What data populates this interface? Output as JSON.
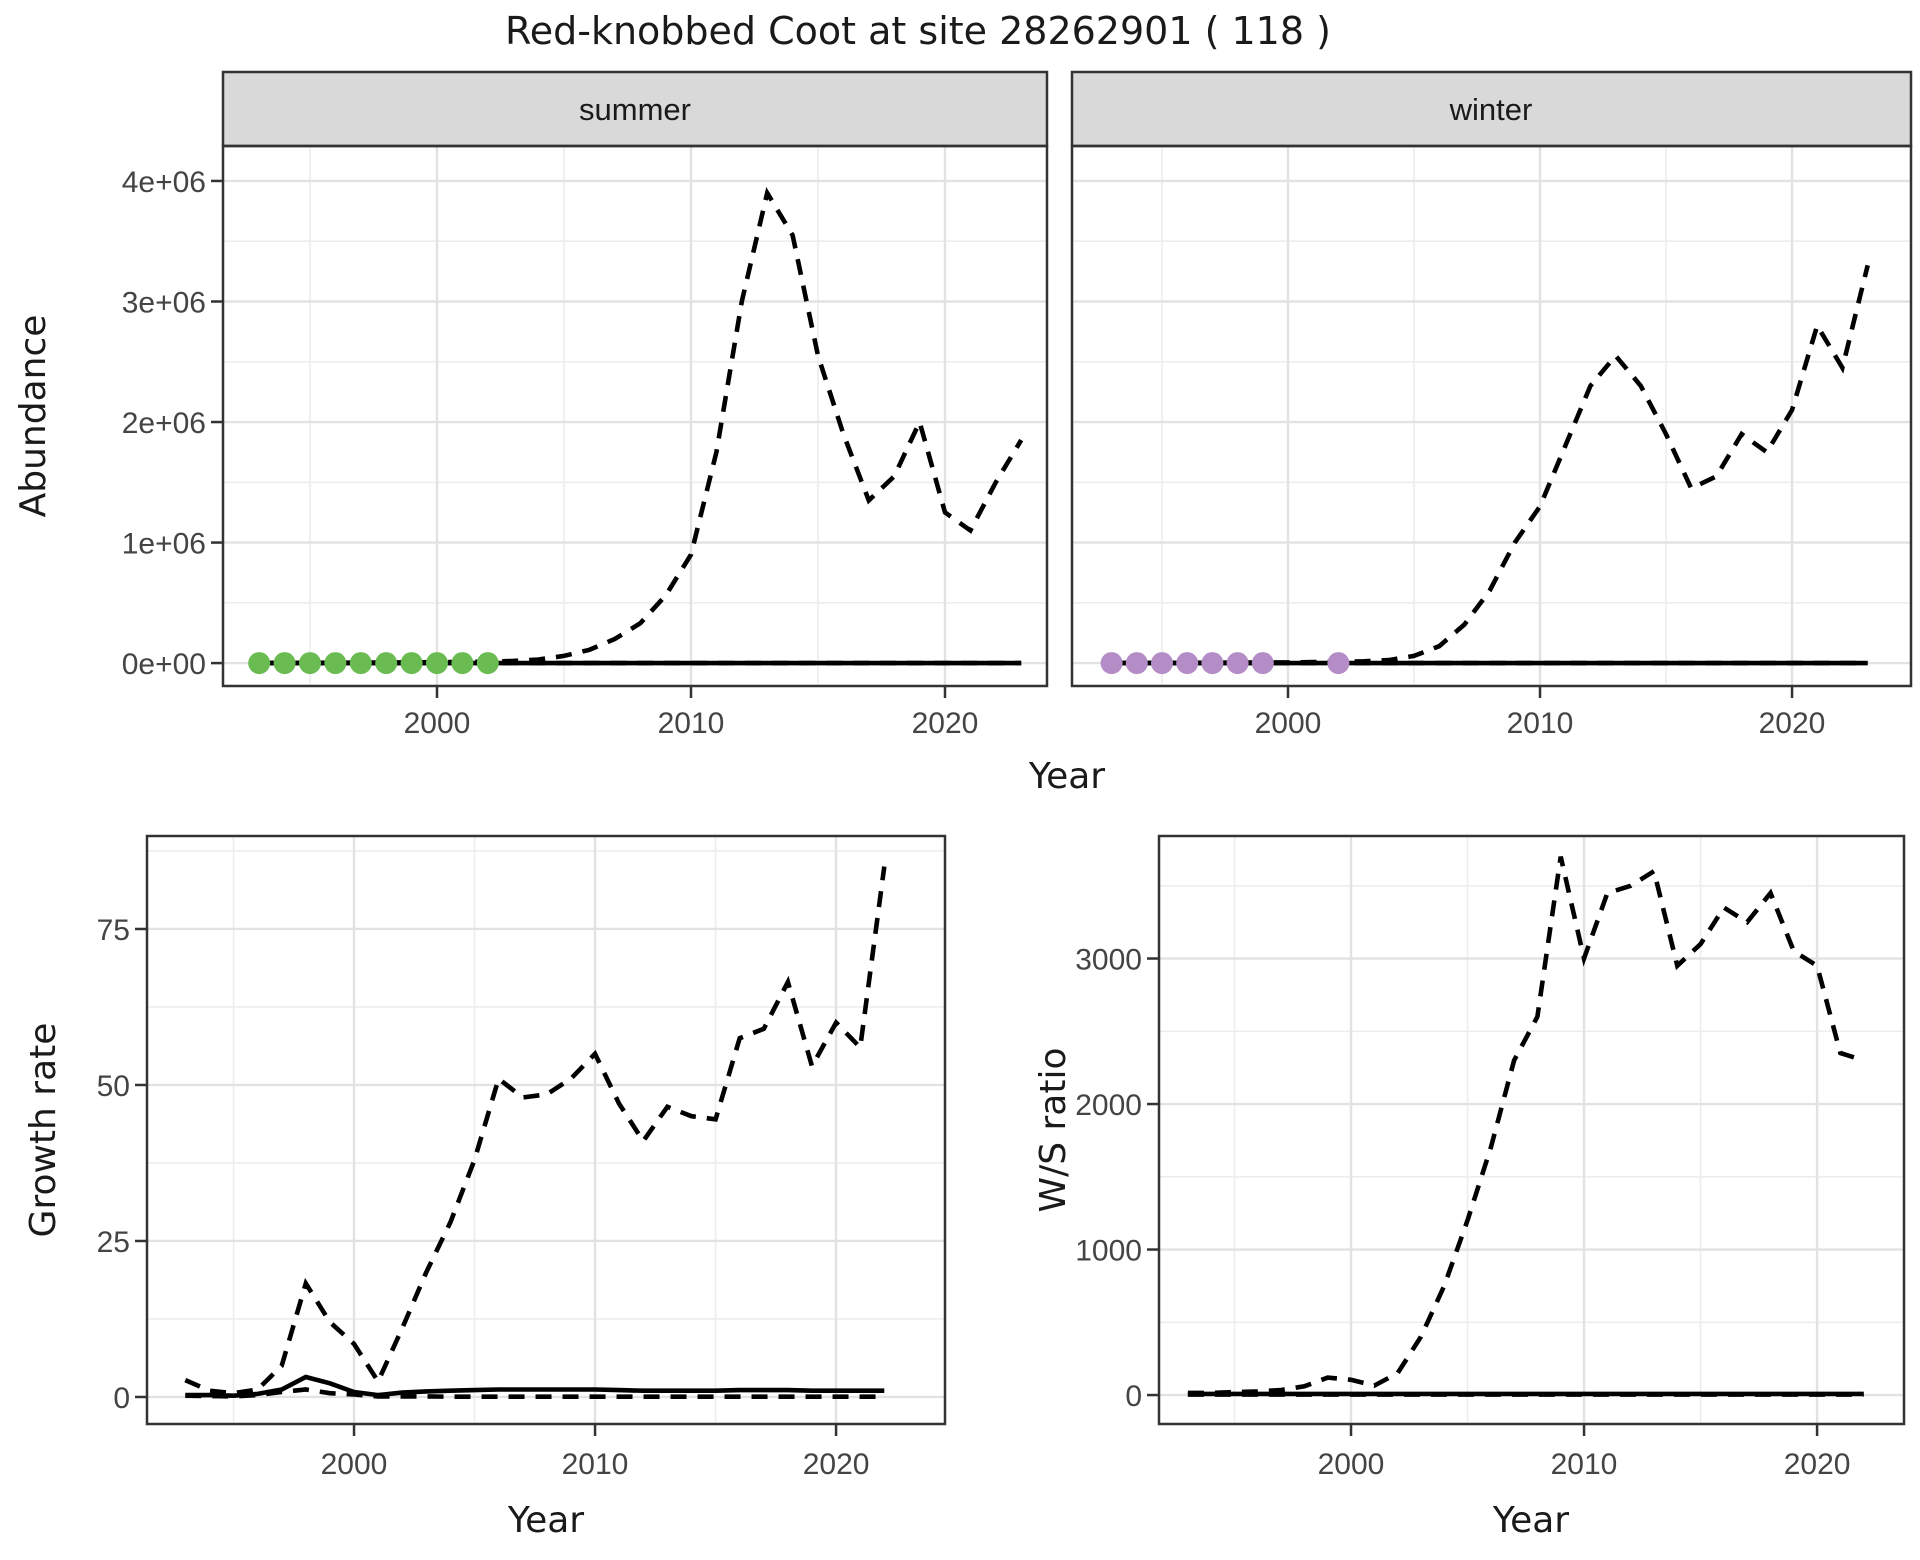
{
  "title": "Red-knobbed Coot at site 28262901 ( 118 )",
  "top_axis": {
    "ylabel": "Abundance",
    "xlabel": "Year"
  },
  "colors": {
    "summer_points": "#6ABC52",
    "winter_points": "#B48CC6",
    "line": "#000000",
    "grid_major": "#E2E2E2",
    "grid_minor": "#EDEDED",
    "panel_border": "#333333",
    "strip_fill": "#D9D9D9",
    "tick_text": "#444444"
  },
  "chart_data": [
    {
      "id": "abundance_summer",
      "type": "line",
      "facet_label": "summer",
      "ylabel": "Abundance",
      "xlabel": "Year",
      "xlim": [
        1991.575,
        2024.016
      ],
      "ylim": [
        -190000,
        4290000
      ],
      "xticks": [
        {
          "v": 2000,
          "label": "2000"
        },
        {
          "v": 2010,
          "label": "2010"
        },
        {
          "v": 2020,
          "label": "2020"
        }
      ],
      "yticks": [
        {
          "v": 0,
          "label": "0e+00"
        },
        {
          "v": 1000000,
          "label": "1e+06"
        },
        {
          "v": 2000000,
          "label": "2e+06"
        },
        {
          "v": 3000000,
          "label": "3e+06"
        },
        {
          "v": 4000000,
          "label": "4e+06"
        }
      ],
      "x_minor": [
        1995,
        2005,
        2015
      ],
      "y_minor": [
        500000,
        1500000,
        2500000,
        3500000
      ],
      "series": [
        {
          "name": "observed",
          "style": "solid",
          "x": [
            1993,
            1994,
            1995,
            1996,
            1997,
            1998,
            1999,
            2000,
            2001,
            2002,
            2003,
            2004,
            2005,
            2006,
            2007,
            2008,
            2009,
            2010,
            2011,
            2012,
            2013,
            2014,
            2015,
            2016,
            2017,
            2018,
            2019,
            2020,
            2021,
            2022,
            2023
          ],
          "y": [
            0,
            0,
            0,
            0,
            0,
            0,
            0,
            0,
            0,
            0,
            0,
            0,
            0,
            0,
            0,
            0,
            0,
            0,
            0,
            0,
            0,
            0,
            0,
            0,
            0,
            0,
            0,
            0,
            0,
            0,
            0
          ]
        },
        {
          "name": "model_lower",
          "style": "dashed",
          "x": [
            1993,
            1994,
            1995,
            1996,
            1997,
            1998,
            1999,
            2000,
            2001,
            2002,
            2003,
            2004,
            2005,
            2006,
            2007,
            2008,
            2009,
            2010,
            2011,
            2012,
            2013,
            2014,
            2015,
            2016,
            2017,
            2018,
            2019,
            2020,
            2021,
            2022,
            2023
          ],
          "y": [
            0,
            0,
            0,
            0,
            0,
            0,
            0,
            0,
            0,
            0,
            0,
            0,
            0,
            0,
            0,
            0,
            0,
            0,
            0,
            0,
            0,
            0,
            0,
            0,
            0,
            0,
            0,
            0,
            0,
            0,
            0
          ]
        },
        {
          "name": "model",
          "style": "dashed",
          "x": [
            1993,
            1994,
            1995,
            1996,
            1997,
            1998,
            1999,
            2000,
            2001,
            2002,
            2003,
            2004,
            2005,
            2006,
            2007,
            2008,
            2009,
            2010,
            2011,
            2012,
            2013,
            2014,
            2015,
            2016,
            2017,
            2018,
            2019,
            2020,
            2021,
            2022,
            2023
          ],
          "y": [
            2000,
            2000,
            2500,
            3000,
            4000,
            5000,
            6000,
            8000,
            9000,
            12000,
            18000,
            30000,
            60000,
            110000,
            200000,
            330000,
            560000,
            900000,
            1750000,
            3000000,
            3900000,
            3550000,
            2550000,
            1900000,
            1350000,
            1550000,
            2000000,
            1250000,
            1100000,
            1500000,
            1850000
          ]
        }
      ],
      "points": {
        "name": "observed_counts_summer",
        "color": "#6ABC52",
        "value": 0,
        "years": [
          1993,
          1994,
          1995,
          1996,
          1997,
          1998,
          1999,
          2000,
          2001,
          2002
        ]
      }
    },
    {
      "id": "abundance_winter",
      "type": "line",
      "facet_label": "winter",
      "ylabel": "Abundance",
      "xlabel": "Year",
      "xlim": [
        1991.43,
        2024.72
      ],
      "ylim": [
        -190000,
        4290000
      ],
      "xticks": [
        {
          "v": 2000,
          "label": "2000"
        },
        {
          "v": 2010,
          "label": "2010"
        },
        {
          "v": 2020,
          "label": "2020"
        }
      ],
      "yticks": [
        {
          "v": 0,
          "label": "0e+00"
        },
        {
          "v": 1000000,
          "label": "1e+06"
        },
        {
          "v": 2000000,
          "label": "2e+06"
        },
        {
          "v": 3000000,
          "label": "3e+06"
        },
        {
          "v": 4000000,
          "label": "4e+06"
        }
      ],
      "x_minor": [
        1995,
        2005,
        2015
      ],
      "y_minor": [
        500000,
        1500000,
        2500000,
        3500000
      ],
      "series": [
        {
          "name": "observed",
          "style": "solid",
          "x": [
            1993,
            1994,
            1995,
            1996,
            1997,
            1998,
            1999,
            2000,
            2001,
            2002,
            2003,
            2004,
            2005,
            2006,
            2007,
            2008,
            2009,
            2010,
            2011,
            2012,
            2013,
            2014,
            2015,
            2016,
            2017,
            2018,
            2019,
            2020,
            2021,
            2022,
            2023
          ],
          "y": [
            0,
            0,
            0,
            0,
            0,
            0,
            0,
            0,
            0,
            0,
            0,
            0,
            0,
            0,
            0,
            0,
            0,
            0,
            0,
            0,
            0,
            0,
            0,
            0,
            0,
            0,
            0,
            0,
            0,
            0,
            0
          ]
        },
        {
          "name": "model_lower",
          "style": "dashed",
          "x": [
            1993,
            1994,
            1995,
            1996,
            1997,
            1998,
            1999,
            2000,
            2001,
            2002,
            2003,
            2004,
            2005,
            2006,
            2007,
            2008,
            2009,
            2010,
            2011,
            2012,
            2013,
            2014,
            2015,
            2016,
            2017,
            2018,
            2019,
            2020,
            2021,
            2022,
            2023
          ],
          "y": [
            0,
            0,
            0,
            0,
            0,
            0,
            0,
            0,
            0,
            0,
            0,
            0,
            0,
            0,
            0,
            0,
            0,
            0,
            0,
            0,
            0,
            0,
            0,
            0,
            0,
            0,
            0,
            0,
            0,
            0,
            0
          ]
        },
        {
          "name": "model",
          "style": "dashed",
          "x": [
            1993,
            1994,
            1995,
            1996,
            1997,
            1998,
            1999,
            2000,
            2001,
            2002,
            2003,
            2004,
            2005,
            2006,
            2007,
            2008,
            2009,
            2010,
            2011,
            2012,
            2013,
            2014,
            2015,
            2016,
            2017,
            2018,
            2019,
            2020,
            2021,
            2022,
            2023
          ],
          "y": [
            1500,
            1500,
            2000,
            2500,
            3000,
            4000,
            5000,
            6000,
            8000,
            10000,
            15000,
            25000,
            60000,
            140000,
            320000,
            600000,
            1000000,
            1300000,
            1800000,
            2300000,
            2550000,
            2300000,
            1900000,
            1450000,
            1550000,
            1900000,
            1750000,
            2100000,
            2800000,
            2450000,
            3300000
          ]
        }
      ],
      "points": {
        "name": "observed_counts_winter",
        "color": "#B48CC6",
        "value": 0,
        "years": [
          1993,
          1994,
          1995,
          1996,
          1997,
          1998,
          1999,
          2002
        ]
      }
    },
    {
      "id": "growth_rate",
      "type": "line",
      "facet_label": "",
      "ylabel": "Growth rate",
      "xlabel": "Year",
      "xlim": [
        1991.41,
        2024.52
      ],
      "ylim": [
        -4.33,
        89.9
      ],
      "xticks": [
        {
          "v": 2000,
          "label": "2000"
        },
        {
          "v": 2010,
          "label": "2010"
        },
        {
          "v": 2020,
          "label": "2020"
        }
      ],
      "yticks": [
        {
          "v": 0,
          "label": "0"
        },
        {
          "v": 25,
          "label": "25"
        },
        {
          "v": 50,
          "label": "50"
        },
        {
          "v": 75,
          "label": "75"
        }
      ],
      "x_minor": [
        1995,
        2005,
        2015
      ],
      "y_minor": [
        12.5,
        37.5,
        62.5,
        87.5
      ],
      "series": [
        {
          "name": "observed",
          "style": "solid",
          "x": [
            1993,
            1994,
            1995,
            1996,
            1997,
            1998,
            1999,
            2000,
            2001,
            2002,
            2003,
            2004,
            2005,
            2006,
            2007,
            2008,
            2009,
            2010,
            2011,
            2012,
            2013,
            2014,
            2015,
            2016,
            2017,
            2018,
            2019,
            2020,
            2021,
            2022
          ],
          "y": [
            0.3,
            0.3,
            0.2,
            0.5,
            1.2,
            3.2,
            2.2,
            0.8,
            0.3,
            0.7,
            0.9,
            1.0,
            1.1,
            1.2,
            1.2,
            1.2,
            1.2,
            1.2,
            1.1,
            1.0,
            1.0,
            1.0,
            1.0,
            1.1,
            1.1,
            1.1,
            1.0,
            1.0,
            1.0,
            1.0
          ]
        },
        {
          "name": "model_lower",
          "style": "dashed",
          "x": [
            1993,
            1994,
            1995,
            1996,
            1997,
            1998,
            1999,
            2000,
            2001,
            2002,
            2003,
            2004,
            2005,
            2006,
            2007,
            2008,
            2009,
            2010,
            2011,
            2012,
            2013,
            2014,
            2015,
            2016,
            2017,
            2018,
            2019,
            2020,
            2021,
            2022
          ],
          "y": [
            0.2,
            0.15,
            0.1,
            0.3,
            0.8,
            1.2,
            0.6,
            0.4,
            0.1,
            0.1,
            0.1,
            0.05,
            0.05,
            0.05,
            0.05,
            0.05,
            0.05,
            0.05,
            0.05,
            0.05,
            0.05,
            0.05,
            0.05,
            0.05,
            0.05,
            0.05,
            0.05,
            0.05,
            0.05,
            0.05
          ]
        },
        {
          "name": "model",
          "style": "dashed",
          "x": [
            1993,
            1994,
            1995,
            1996,
            1997,
            1998,
            1999,
            2000,
            2001,
            2002,
            2003,
            2004,
            2005,
            2006,
            2007,
            2008,
            2009,
            2010,
            2011,
            2012,
            2013,
            2014,
            2015,
            2016,
            2017,
            2018,
            2019,
            2020,
            2021,
            2022
          ],
          "y": [
            2.7,
            1.0,
            0.6,
            1.2,
            5,
            18.2,
            12,
            8.5,
            2.5,
            11,
            20,
            28,
            38,
            51,
            48,
            48.5,
            51,
            55,
            47,
            41,
            46.5,
            45,
            44.5,
            57.5,
            59,
            66.5,
            53,
            60,
            56,
            85
          ]
        }
      ],
      "points": null
    },
    {
      "id": "ws_ratio",
      "type": "line",
      "facet_label": "",
      "ylabel": "W/S ratio",
      "xlabel": "Year",
      "xlim": [
        1991.76,
        2023.73
      ],
      "ylim": [
        -199,
        3842
      ],
      "xticks": [
        {
          "v": 2000,
          "label": "2000"
        },
        {
          "v": 2010,
          "label": "2010"
        },
        {
          "v": 2020,
          "label": "2020"
        }
      ],
      "yticks": [
        {
          "v": 0,
          "label": "0"
        },
        {
          "v": 1000,
          "label": "1000"
        },
        {
          "v": 2000,
          "label": "2000"
        },
        {
          "v": 3000,
          "label": "3000"
        }
      ],
      "x_minor": [
        1995,
        2005,
        2015
      ],
      "y_minor": [
        500,
        1500,
        2500,
        3500
      ],
      "series": [
        {
          "name": "observed",
          "style": "solid",
          "x": [
            1993,
            1994,
            1995,
            1996,
            1997,
            1998,
            1999,
            2000,
            2001,
            2002,
            2003,
            2004,
            2005,
            2006,
            2007,
            2008,
            2009,
            2010,
            2011,
            2012,
            2013,
            2014,
            2015,
            2016,
            2017,
            2018,
            2019,
            2020,
            2021,
            2022
          ],
          "y": [
            8,
            8,
            8,
            8,
            8,
            8,
            8,
            8,
            8,
            8,
            8,
            8,
            8,
            8,
            8,
            8,
            8,
            8,
            8,
            8,
            8,
            8,
            8,
            8,
            8,
            8,
            8,
            8,
            8,
            8
          ]
        },
        {
          "name": "model_lower",
          "style": "dashed",
          "x": [
            1993,
            1994,
            1995,
            1996,
            1997,
            1998,
            1999,
            2000,
            2001,
            2002,
            2003,
            2004,
            2005,
            2006,
            2007,
            2008,
            2009,
            2010,
            2011,
            2012,
            2013,
            2014,
            2015,
            2016,
            2017,
            2018,
            2019,
            2020,
            2021,
            2022
          ],
          "y": [
            3,
            3,
            3,
            3,
            3,
            3,
            3,
            3,
            3,
            3,
            3,
            3,
            3,
            3,
            3,
            3,
            3,
            3,
            3,
            3,
            3,
            3,
            3,
            3,
            3,
            3,
            3,
            3,
            3,
            3
          ]
        },
        {
          "name": "model",
          "style": "dashed",
          "x": [
            1993,
            1994,
            1995,
            1996,
            1997,
            1998,
            1999,
            2000,
            2001,
            2002,
            2003,
            2004,
            2005,
            2006,
            2007,
            2008,
            2009,
            2010,
            2011,
            2012,
            2013,
            2014,
            2015,
            2016,
            2017,
            2018,
            2019,
            2020,
            2021,
            2022
          ],
          "y": [
            15,
            15,
            20,
            25,
            35,
            60,
            120,
            105,
            65,
            150,
            400,
            750,
            1200,
            1700,
            2300,
            2600,
            3700,
            3000,
            3450,
            3500,
            3600,
            2950,
            3100,
            3350,
            3250,
            3450,
            3050,
            2950,
            2350,
            2300
          ]
        }
      ],
      "points": null
    }
  ]
}
